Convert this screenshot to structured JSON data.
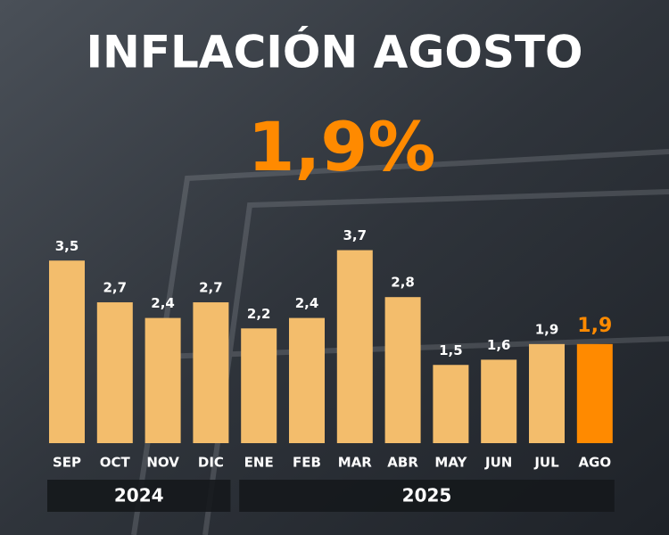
{
  "chart_data": {
    "type": "bar",
    "title": "INFLACIÓN AGOSTO",
    "headline": "1,9%",
    "categories": [
      "SEP",
      "OCT",
      "NOV",
      "DIC",
      "ENE",
      "FEB",
      "MAR",
      "ABR",
      "MAY",
      "JUN",
      "JUL",
      "AGO"
    ],
    "values": [
      3.5,
      2.7,
      2.4,
      2.7,
      2.2,
      2.4,
      3.7,
      2.8,
      1.5,
      1.6,
      1.9,
      1.9
    ],
    "value_labels": [
      "3,5",
      "2,7",
      "2,4",
      "2,7",
      "2,2",
      "2,4",
      "3,7",
      "2,8",
      "1,5",
      "1,6",
      "1,9",
      "1,9"
    ],
    "colors": [
      "#f3bd6c",
      "#f3bd6c",
      "#f3bd6c",
      "#f3bd6c",
      "#f3bd6c",
      "#f3bd6c",
      "#f3bd6c",
      "#f3bd6c",
      "#f3bd6c",
      "#f3bd6c",
      "#f3bd6c",
      "#ff8a00"
    ],
    "groups": [
      {
        "label": "2024",
        "first": "SEP",
        "last": "DIC"
      },
      {
        "label": "2025",
        "first": "ENE",
        "last": "AGO"
      }
    ]
  }
}
